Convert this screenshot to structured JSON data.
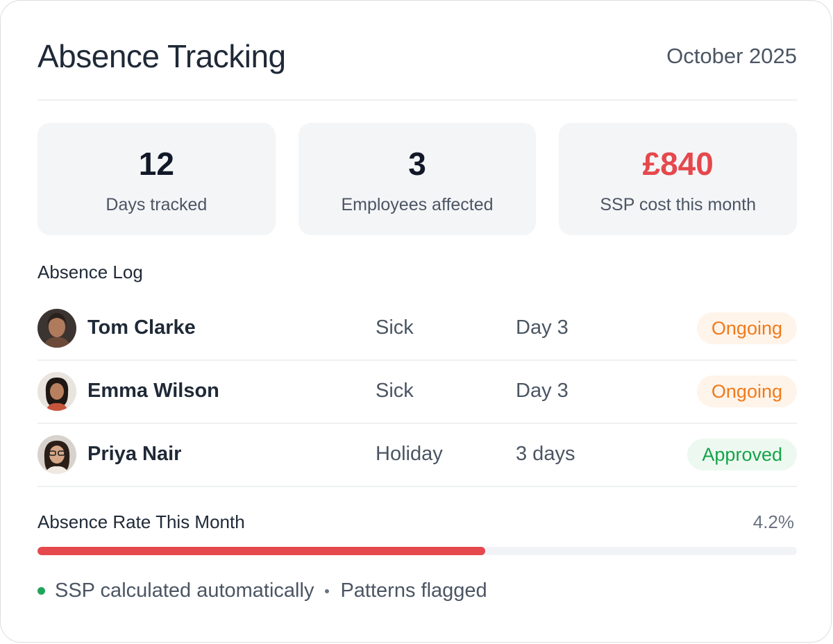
{
  "header": {
    "title": "Absence Tracking",
    "period": "October 2025"
  },
  "stats": [
    {
      "value": "12",
      "label": "Days tracked",
      "color": "#111827"
    },
    {
      "value": "3",
      "label": "Employees affected",
      "color": "#111827"
    },
    {
      "value": "£840",
      "label": "SSP cost  this month",
      "color": "#e5484d"
    }
  ],
  "log": {
    "title": "Absence Log",
    "rows": [
      {
        "name": "Tom Clarke",
        "type": "Sick",
        "duration": "Day 3",
        "status": "Ongoing",
        "avatar": "avatar-photo"
      },
      {
        "name": "Emma Wilson",
        "type": "Sick",
        "duration": "Day 3",
        "status": "Ongoing",
        "avatar": "avatar-photo"
      },
      {
        "name": "Priya Nair",
        "type": "Holiday",
        "duration": "3 days",
        "status": "Approved",
        "avatar": "avatar-photo"
      }
    ]
  },
  "rate": {
    "label": "Absence Rate This Month",
    "value": "4.2%",
    "fill_fraction": 0.59,
    "color": "#e5484d"
  },
  "footer": {
    "item1": "SSP calculated automatically",
    "item2": "Patterns flagged",
    "status_color": "#22a55a"
  },
  "colors": {
    "ongoing": "#f07a1a",
    "approved": "#16a34a",
    "accent_red": "#e5484d"
  }
}
